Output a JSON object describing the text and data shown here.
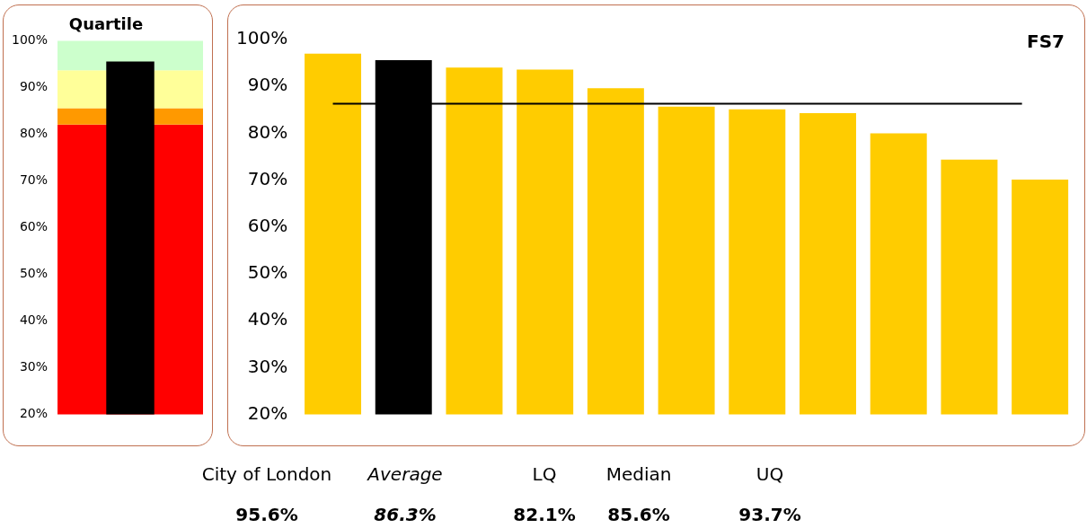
{
  "chart_data": [
    {
      "type": "bar",
      "title": "Quartile",
      "categories": [
        null
      ],
      "values": [
        95.6
      ],
      "colors": [
        "#000000"
      ],
      "ylim": [
        20,
        100
      ],
      "yticks": [
        {
          "value": 20,
          "label": "20%"
        },
        {
          "value": 30,
          "label": "30%"
        },
        {
          "value": 40,
          "label": "40%"
        },
        {
          "value": 50,
          "label": "50%"
        },
        {
          "value": 60,
          "label": "60%"
        },
        {
          "value": 70,
          "label": "70%"
        },
        {
          "value": 80,
          "label": "80%"
        },
        {
          "value": 90,
          "label": "90%"
        },
        {
          "value": 100,
          "label": "100%"
        }
      ],
      "bands": [
        {
          "axis": "y",
          "from": 20,
          "to": 82.1,
          "color": "#ff0000"
        },
        {
          "axis": "y",
          "from": 82.1,
          "to": 85.6,
          "color": "#ff9900"
        },
        {
          "axis": "y",
          "from": 85.6,
          "to": 93.7,
          "color": "#ffff99"
        },
        {
          "axis": "y",
          "from": 93.7,
          "to": 100,
          "color": "#ccffcc"
        }
      ],
      "grid": false,
      "legend": false
    },
    {
      "type": "bar",
      "title": "FS7",
      "categories": [
        null,
        null,
        null,
        null,
        null,
        null,
        null,
        null,
        null,
        null,
        null
      ],
      "values": [
        97,
        95.6,
        94,
        93.6,
        89.6,
        85.7,
        85.1,
        84.3,
        80,
        74.4,
        70.1
      ],
      "colors": [
        "#ffcc00",
        "#000000",
        "#ffcc00",
        "#ffcc00",
        "#ffcc00",
        "#ffcc00",
        "#ffcc00",
        "#ffcc00",
        "#ffcc00",
        "#ffcc00",
        "#ffcc00"
      ],
      "ylim": [
        20,
        100
      ],
      "yticks": [
        {
          "value": 20,
          "label": "20%"
        },
        {
          "value": 30,
          "label": "30%"
        },
        {
          "value": 40,
          "label": "40%"
        },
        {
          "value": 50,
          "label": "50%"
        },
        {
          "value": 60,
          "label": "60%"
        },
        {
          "value": 70,
          "label": "70%"
        },
        {
          "value": 80,
          "label": "80%"
        },
        {
          "value": 90,
          "label": "90%"
        },
        {
          "value": 100,
          "label": "100%"
        }
      ],
      "ref_lines": [
        {
          "axis": "y",
          "value": 86.3,
          "color": "#000000"
        }
      ],
      "annotations": [
        "City of London",
        "Average",
        "LQ",
        "Median",
        "UQ",
        "95.6%",
        "86.3%",
        "82.1%",
        "85.6%",
        "93.7%"
      ],
      "grid": false,
      "legend": false
    }
  ]
}
